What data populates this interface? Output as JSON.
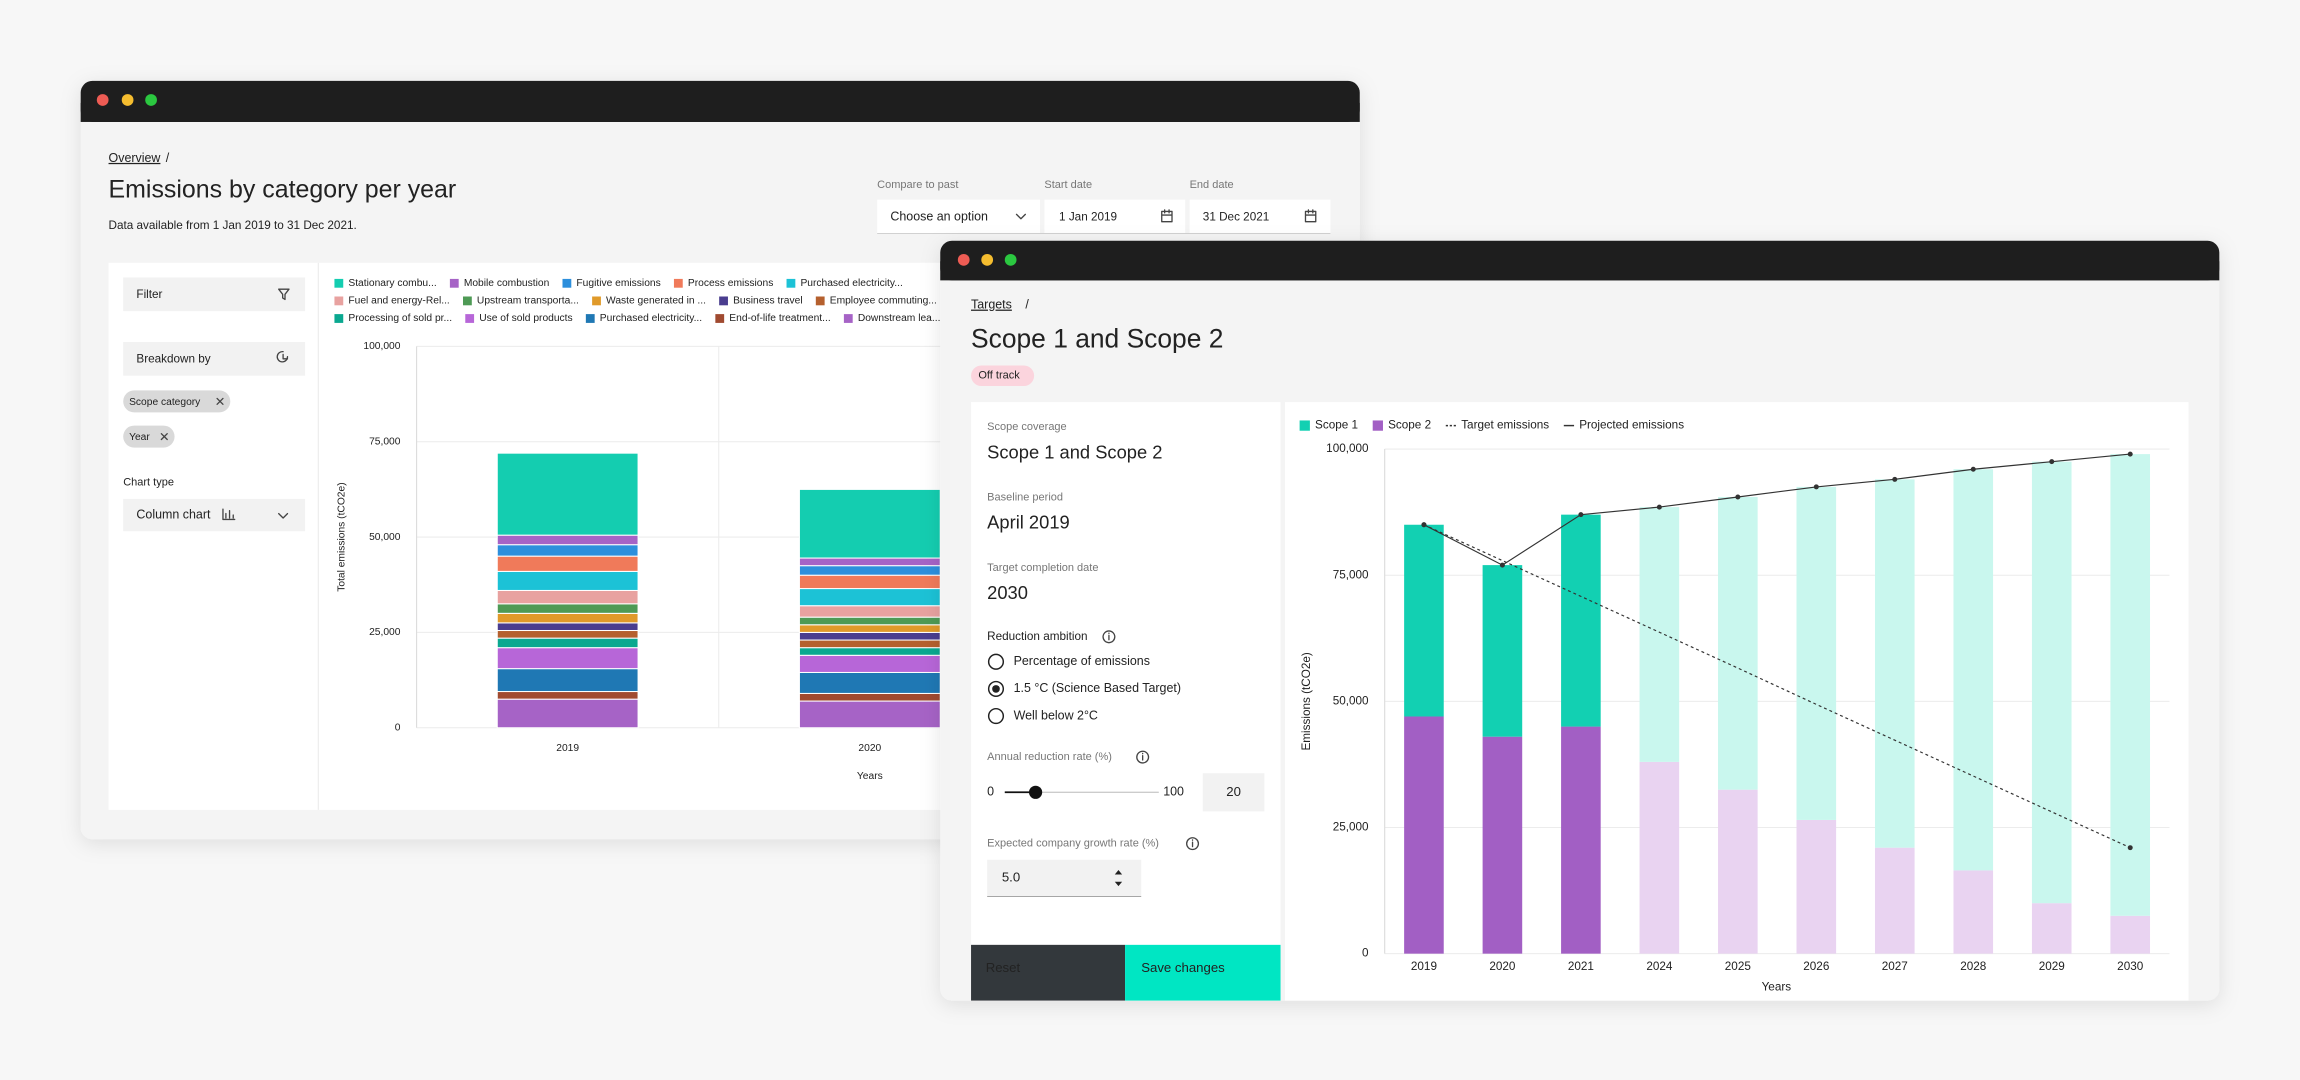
{
  "overview_window": {
    "breadcrumb": "Overview",
    "separator": "/",
    "title": "Emissions by category per year",
    "subtitle": "Data available from 1 Jan 2019 to 31 Dec 2021.",
    "controls": [
      {
        "label": "Compare to past",
        "value": "Choose an option"
      },
      {
        "label": "Start date",
        "value": "1 Jan 2019"
      },
      {
        "label": "End date",
        "value": "31 Dec 2021"
      }
    ],
    "sidebar": {
      "filter": "Filter",
      "breakdown": "Breakdown by",
      "chips": [
        "Scope category",
        "Year"
      ],
      "chart_type_label": "Chart type",
      "chart_type": "Column chart"
    }
  },
  "targets_window": {
    "breadcrumb": "Targets",
    "separator": "/",
    "title": "Scope 1 and Scope 2",
    "status": "Off track",
    "fields": [
      {
        "label": "Scope coverage",
        "value": "Scope 1 and Scope 2"
      },
      {
        "label": "Baseline period",
        "value": "April 2019"
      },
      {
        "label": "Target completion date",
        "value": "2030"
      }
    ],
    "reduction_ambition": {
      "label": "Reduction ambition",
      "options": [
        "Percentage of emissions",
        "1.5 °C (Science Based Target)",
        "Well below 2°C"
      ],
      "selected": 1
    },
    "annual_reduction": {
      "label": "Annual reduction rate (%)",
      "min": 0,
      "max": 100,
      "value": 20
    },
    "growth": {
      "label": "Expected company growth rate (%)",
      "value": "5.0"
    },
    "buttons": [
      "Reset",
      "Save changes"
    ]
  },
  "chart_data": [
    {
      "type": "stacked_bar",
      "y_label": "Total emissions (tCO2e)",
      "x_label": "Years",
      "categories": [
        "2019",
        "2020"
      ],
      "ylim": [
        0,
        100000
      ],
      "yticks": [
        0,
        {
          "value": 25000,
          "label": "25,000"
        },
        {
          "value": 50000,
          "label": "50,000"
        },
        {
          "value": 75000,
          "label": "75,000"
        },
        {
          "value": 100000,
          "label": "100,000"
        }
      ],
      "grid": true,
      "series": [
        {
          "name": "Stationary combu...",
          "color": "#14cdb0",
          "values": [
            21500,
            18000
          ]
        },
        {
          "name": "Mobile combustion",
          "color": "#a663c6",
          "values": [
            2500,
            2000
          ]
        },
        {
          "name": "Fugitive emissions",
          "color": "#2d8fdc",
          "values": [
            3000,
            2500
          ]
        },
        {
          "name": "Process emissions",
          "color": "#f07a5a",
          "values": [
            4000,
            3500
          ]
        },
        {
          "name": "Purchased electricity...",
          "color": "#1cc2d6",
          "values": [
            5000,
            4500
          ]
        },
        {
          "name": "Fuel and energy-Rel...",
          "color": "#e8a2a0",
          "values": [
            3500,
            3000
          ]
        },
        {
          "name": "Upstream transporta...",
          "color": "#4e9a55",
          "values": [
            2500,
            2000
          ]
        },
        {
          "name": "Waste generated in ...",
          "color": "#e09a2a",
          "values": [
            2500,
            2000
          ]
        },
        {
          "name": "Business travel",
          "color": "#4a3d8f",
          "values": [
            2000,
            2000
          ]
        },
        {
          "name": "Employee commuting...",
          "color": "#b5602e",
          "values": [
            2000,
            2000
          ]
        },
        {
          "name": "Processing of sold pr...",
          "color": "#0aa890",
          "values": [
            2500,
            2000
          ]
        },
        {
          "name": "Use of sold products",
          "color": "#b766d8",
          "values": [
            5500,
            4500
          ]
        },
        {
          "name": "Purchased electricity...",
          "color": "#1f78b4",
          "values": [
            6000,
            5500
          ]
        },
        {
          "name": "End-of-life treatment...",
          "color": "#a04a30",
          "values": [
            2000,
            2000
          ]
        },
        {
          "name": "Downstream lea...",
          "color": "#a663c6",
          "values": [
            7500,
            7000
          ]
        }
      ]
    },
    {
      "type": "stacked_bar",
      "y_label": "Emissions (tCO2e)",
      "x_label": "Years",
      "categories": [
        "2019",
        "2020",
        "2021",
        "2024",
        "2025",
        "2026",
        "2027",
        "2028",
        "2029",
        "2030"
      ],
      "forecast_from": "2024",
      "ylim": [
        0,
        100000
      ],
      "yticks": [
        0,
        {
          "value": 25000,
          "label": "25,000"
        },
        {
          "value": 50000,
          "label": "50,000"
        },
        {
          "value": 75000,
          "label": "75,000"
        },
        {
          "value": 100000,
          "label": "100,000"
        }
      ],
      "grid": true,
      "series": [
        {
          "name": "Scope 1",
          "color": "#12d0b2",
          "forecast_color": "#c9f7ee",
          "values": [
            38000,
            34000,
            42000,
            50500,
            58000,
            66000,
            73000,
            79500,
            87500,
            91500
          ]
        },
        {
          "name": "Scope 2",
          "color": "#a25fc4",
          "forecast_color": "#e9d3f1",
          "values": [
            47000,
            43000,
            45000,
            38000,
            32500,
            26500,
            21000,
            16500,
            10000,
            7500
          ]
        },
        {
          "name": "Target emissions",
          "type": "line",
          "dash": true,
          "markers": "ends",
          "color": "#333333",
          "values": [
            85000,
            77900,
            70800,
            63700,
            56600,
            49400,
            42300,
            35200,
            28100,
            21000
          ]
        },
        {
          "name": "Projected emissions",
          "type": "line",
          "dash": false,
          "markers": "all",
          "color": "#333333",
          "values": [
            85000,
            77000,
            87000,
            88500,
            90500,
            92500,
            94000,
            96000,
            97500,
            99000
          ]
        }
      ]
    }
  ]
}
